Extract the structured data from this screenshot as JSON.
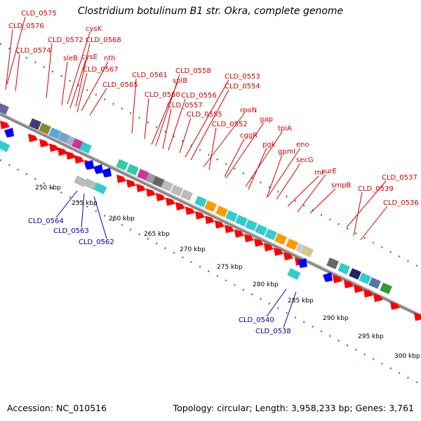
{
  "title": "Clostridium botulinum B1 str. Okra, complete genome",
  "footer": {
    "accession": "Accession: NC_010516",
    "summary": "Topology: circular; Length: 3,958,233 bp; Genes: 3,761"
  },
  "colors": {
    "forward_label": "#cc0000",
    "reverse_label": "#0000aa",
    "forward_arrow": "#ff0000",
    "reverse_arrow": "#0000ff",
    "backbone": "#888888",
    "gc_dots": "#339933"
  },
  "ticks": [
    "250 kbp",
    "255 kbp",
    "260 kbp",
    "265 kbp",
    "270 kbp",
    "275 kbp",
    "280 kbp",
    "285 kbp",
    "290 kbp",
    "295 kbp",
    "300 kbp"
  ],
  "forward_labels": [
    "CLD_0575",
    "CLD_0576",
    "CLD_0574",
    "CLD_0572",
    "cysK",
    "sleB",
    "CLD_0568",
    "cysE",
    "nth",
    "CLD_0567",
    "CLD_0565",
    "CLD_0561",
    "CLD_0558",
    "splB",
    "CLD_0560",
    "CLD_0556",
    "CLD_0557",
    "CLD_0553",
    "CLD_0554",
    "CLD_0555",
    "rpoN",
    "CLD_0552",
    "gap",
    "cggR",
    "tpiA",
    "pgk",
    "eno",
    "gpmI",
    "secG",
    "rnr",
    "surE",
    "smpB",
    "CLD_0537",
    "CLD_0539",
    "CLD_0536"
  ],
  "reverse_labels": [
    "CLD_0564",
    "CLD_0563",
    "CLD_0562",
    "CLD_0540",
    "CLD_0538"
  ]
}
